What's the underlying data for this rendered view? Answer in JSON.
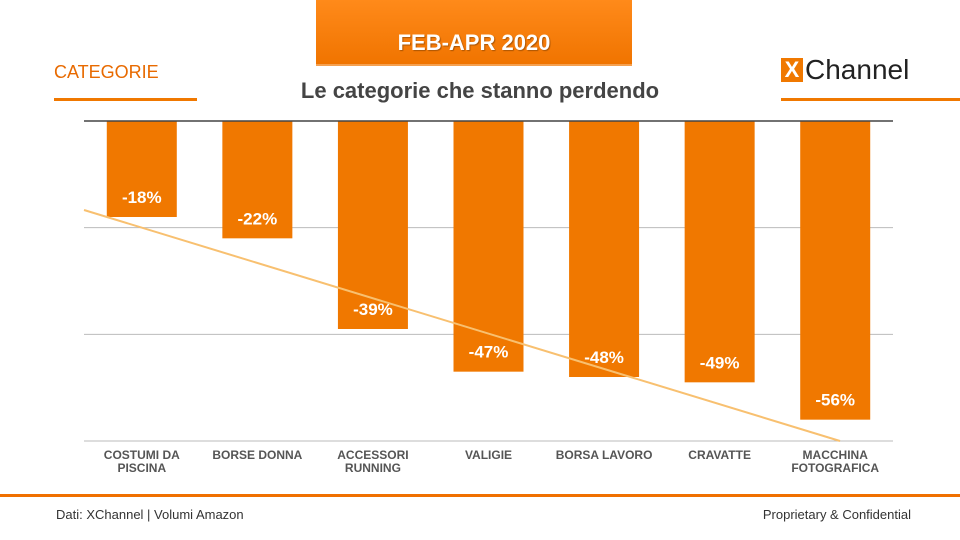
{
  "banner": "FEB-APR 2020",
  "section_label": "CATEGORIE",
  "logo": {
    "mark": "X",
    "text": "Channel"
  },
  "footer": {
    "source": "Dati: XChannel | Volumi Amazon",
    "confidential": "Proprietary & Confidential"
  },
  "chart_data": {
    "type": "bar",
    "title": "Le categorie che stanno perdendo",
    "categories": [
      [
        "COSTUMI DA",
        "PISCINA"
      ],
      [
        "BORSE DONNA"
      ],
      [
        "ACCESSORI",
        "RUNNING"
      ],
      [
        "VALIGIE"
      ],
      [
        "BORSA LAVORO"
      ],
      [
        "CRAVATTE"
      ],
      [
        "MACCHINA",
        "FOTOGRAFICA"
      ]
    ],
    "values": [
      -18,
      -22,
      -39,
      -47,
      -48,
      -49,
      -56
    ],
    "labels": [
      "-18%",
      "-22%",
      "-39%",
      "-47%",
      "-48%",
      "-49%",
      "-56%"
    ],
    "ylim": [
      -60,
      0
    ],
    "gridlines": [
      -20,
      -40,
      -60
    ],
    "trendline": true,
    "colors": {
      "bar": "#f07800",
      "trend": "#f8c070",
      "grid": "#bbbbbb",
      "axis": "#444444"
    }
  }
}
